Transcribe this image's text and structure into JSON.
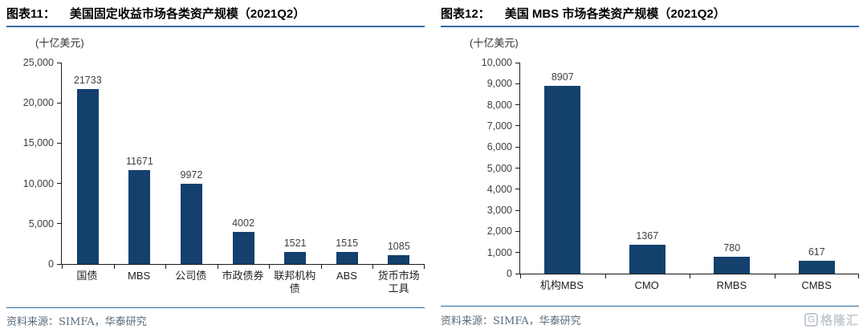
{
  "colors": {
    "bar": "#14406e",
    "accent_line": "#2e6da4",
    "axis": "#1a1a1a",
    "tick_text": "#404040",
    "value_text": "#404040",
    "source_text": "#5a6a7a",
    "logo": "#c4cad1"
  },
  "left_panel": {
    "label": "图表11：",
    "title": "美国固定收益市场各类资产规模（2021Q2）",
    "unit": "(十亿美元)",
    "source": "资料来源：SIMFA，华泰研究",
    "chart_data": {
      "type": "bar",
      "title": "美国固定收益市场各类资产规模（2021Q2）",
      "xlabel": "",
      "ylabel": "十亿美元",
      "categories": [
        "国债",
        "MBS",
        "公司债",
        "市政债券",
        "联邦机构\n债",
        "ABS",
        "货币市场\n工具"
      ],
      "values": [
        21733,
        11671,
        9972,
        4002,
        1521,
        1515,
        1085
      ],
      "ylim": [
        0,
        25000
      ],
      "ystep": 5000,
      "grid": false,
      "legend": false,
      "value_labels": true,
      "bar_color": "#14406e"
    }
  },
  "right_panel": {
    "label": "图表12：",
    "title": "美国 MBS 市场各类资产规模（2021Q2）",
    "unit": "(十亿美元)",
    "source": "资料来源：SIMFA，华泰研究",
    "chart_data": {
      "type": "bar",
      "title": "美国 MBS 市场各类资产规模（2021Q2）",
      "xlabel": "",
      "ylabel": "十亿美元",
      "categories": [
        "机构MBS",
        "CMO",
        "RMBS",
        "CMBS"
      ],
      "values": [
        8907,
        1367,
        780,
        617
      ],
      "ylim": [
        0,
        10000
      ],
      "ystep": 1000,
      "grid": false,
      "legend": false,
      "value_labels": true,
      "bar_color": "#14406e"
    }
  },
  "logo": {
    "icon": "G",
    "text": "格隆汇"
  }
}
